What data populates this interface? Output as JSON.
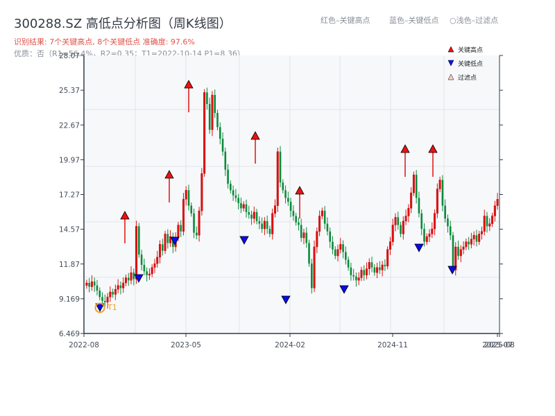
{
  "header": {
    "title": "300288.SZ 高低点分析图（周K线图）",
    "result": "识别结果: 7个关键高点, 8个关键低点   准确度: 97.6%",
    "quality": "优质：否（R1=56.4%，R2=0.35；T1=2022-10-14 P1=8.36）",
    "note_red": "红色–关键高点",
    "note_blue": "蓝色–关键低点",
    "note_light": "○浅色–过滤点"
  },
  "legend": {
    "items": [
      {
        "label": "关键高点",
        "marker": "triangle-up",
        "color": "#ee1111"
      },
      {
        "label": "关键低点",
        "marker": "triangle-down",
        "color": "#1111ee"
      },
      {
        "label": "过滤点",
        "marker": "triangle-up-light",
        "color": "#ffcccc"
      }
    ]
  },
  "colors": {
    "up": "#e01010",
    "down": "#0a8a3a",
    "high_marker": "#ee1111",
    "low_marker": "#0a0aee",
    "t1_ring": "#f0a020",
    "plot_bg": "#f6f8fa",
    "grid": "#e1e4e8",
    "axis": "#2d3a4b"
  },
  "chart_data": {
    "type": "candlestick",
    "title": "300288.SZ 高低点分析图（周K线图）",
    "ylim": [
      6.469,
      28.07
    ],
    "yticks": [
      "28.07",
      "25.37",
      "22.67",
      "19.97",
      "17.27",
      "14.57",
      "11.87",
      "9.169",
      "6.469"
    ],
    "xticks": [
      "2022-08",
      "2023-05",
      "2024-02",
      "2024-11",
      "2025-07",
      "2025-08"
    ],
    "annotation": "T1",
    "key_highs": [
      {
        "date": "2022-12",
        "price": 15.7
      },
      {
        "date": "2023-04",
        "price": 18.6
      },
      {
        "date": "2023-05",
        "price": 25.8
      },
      {
        "date": "2023-11",
        "price": 21.9
      },
      {
        "date": "2024-02",
        "price": 17.5
      },
      {
        "date": "2024-11",
        "price": 20.6
      },
      {
        "date": "2025-01",
        "price": 20.6
      }
    ],
    "key_lows": [
      {
        "date": "2022-10",
        "price": 8.6
      },
      {
        "date": "2023-01",
        "price": 10.9
      },
      {
        "date": "2023-04",
        "price": 13.6
      },
      {
        "date": "2023-10",
        "price": 13.6
      },
      {
        "date": "2024-02",
        "price": 9.1
      },
      {
        "date": "2024-06",
        "price": 10.0
      },
      {
        "date": "2024-12",
        "price": 13.0
      },
      {
        "date": "2025-03",
        "price": 11.6
      }
    ],
    "closes": [
      10.4,
      10.1,
      10.5,
      10.2,
      9.8,
      9.3,
      9.0,
      8.9,
      9.3,
      9.7,
      9.5,
      9.9,
      10.2,
      10.0,
      10.4,
      10.8,
      10.6,
      11.2,
      10.7,
      14.8,
      12.6,
      11.8,
      11.3,
      11.0,
      11.1,
      11.6,
      11.9,
      12.4,
      13.4,
      12.9,
      14.2,
      13.5,
      14.0,
      13.2,
      13.9,
      14.9,
      14.4,
      16.9,
      17.6,
      16.4,
      15.8,
      14.3,
      14.1,
      16.0,
      18.9,
      25.2,
      24.3,
      22.3,
      25.0,
      23.6,
      22.5,
      21.6,
      20.6,
      19.2,
      18.1,
      17.6,
      17.2,
      17.0,
      16.6,
      16.2,
      16.5,
      15.9,
      15.7,
      15.4,
      15.9,
      15.2,
      15.0,
      14.6,
      15.2,
      14.6,
      14.2,
      15.8,
      16.4,
      20.6,
      18.2,
      17.6,
      17.0,
      16.7,
      16.0,
      15.6,
      15.1,
      14.9,
      13.9,
      14.3,
      13.5,
      11.9,
      10.0,
      13.2,
      14.4,
      15.6,
      16.0,
      15.0,
      14.4,
      13.6,
      13.0,
      12.5,
      13.0,
      13.4,
      12.8,
      12.2,
      11.6,
      11.0,
      10.9,
      10.6,
      10.8,
      11.4,
      11.0,
      11.5,
      12.0,
      11.6,
      11.2,
      11.6,
      11.4,
      11.8,
      11.7,
      13.0,
      13.6,
      14.9,
      15.5,
      14.9,
      14.2,
      15.2,
      15.6,
      16.2,
      17.4,
      18.8,
      17.0,
      15.8,
      14.6,
      13.6,
      14.0,
      14.2,
      14.6,
      15.8,
      17.7,
      18.4,
      16.4,
      15.4,
      14.8,
      14.1,
      11.4,
      13.2,
      12.5,
      13.0,
      13.2,
      13.6,
      13.4,
      13.8,
      14.1,
      13.6,
      14.2,
      14.4,
      15.6,
      14.8,
      15.0,
      15.6,
      16.4,
      16.9
    ]
  }
}
